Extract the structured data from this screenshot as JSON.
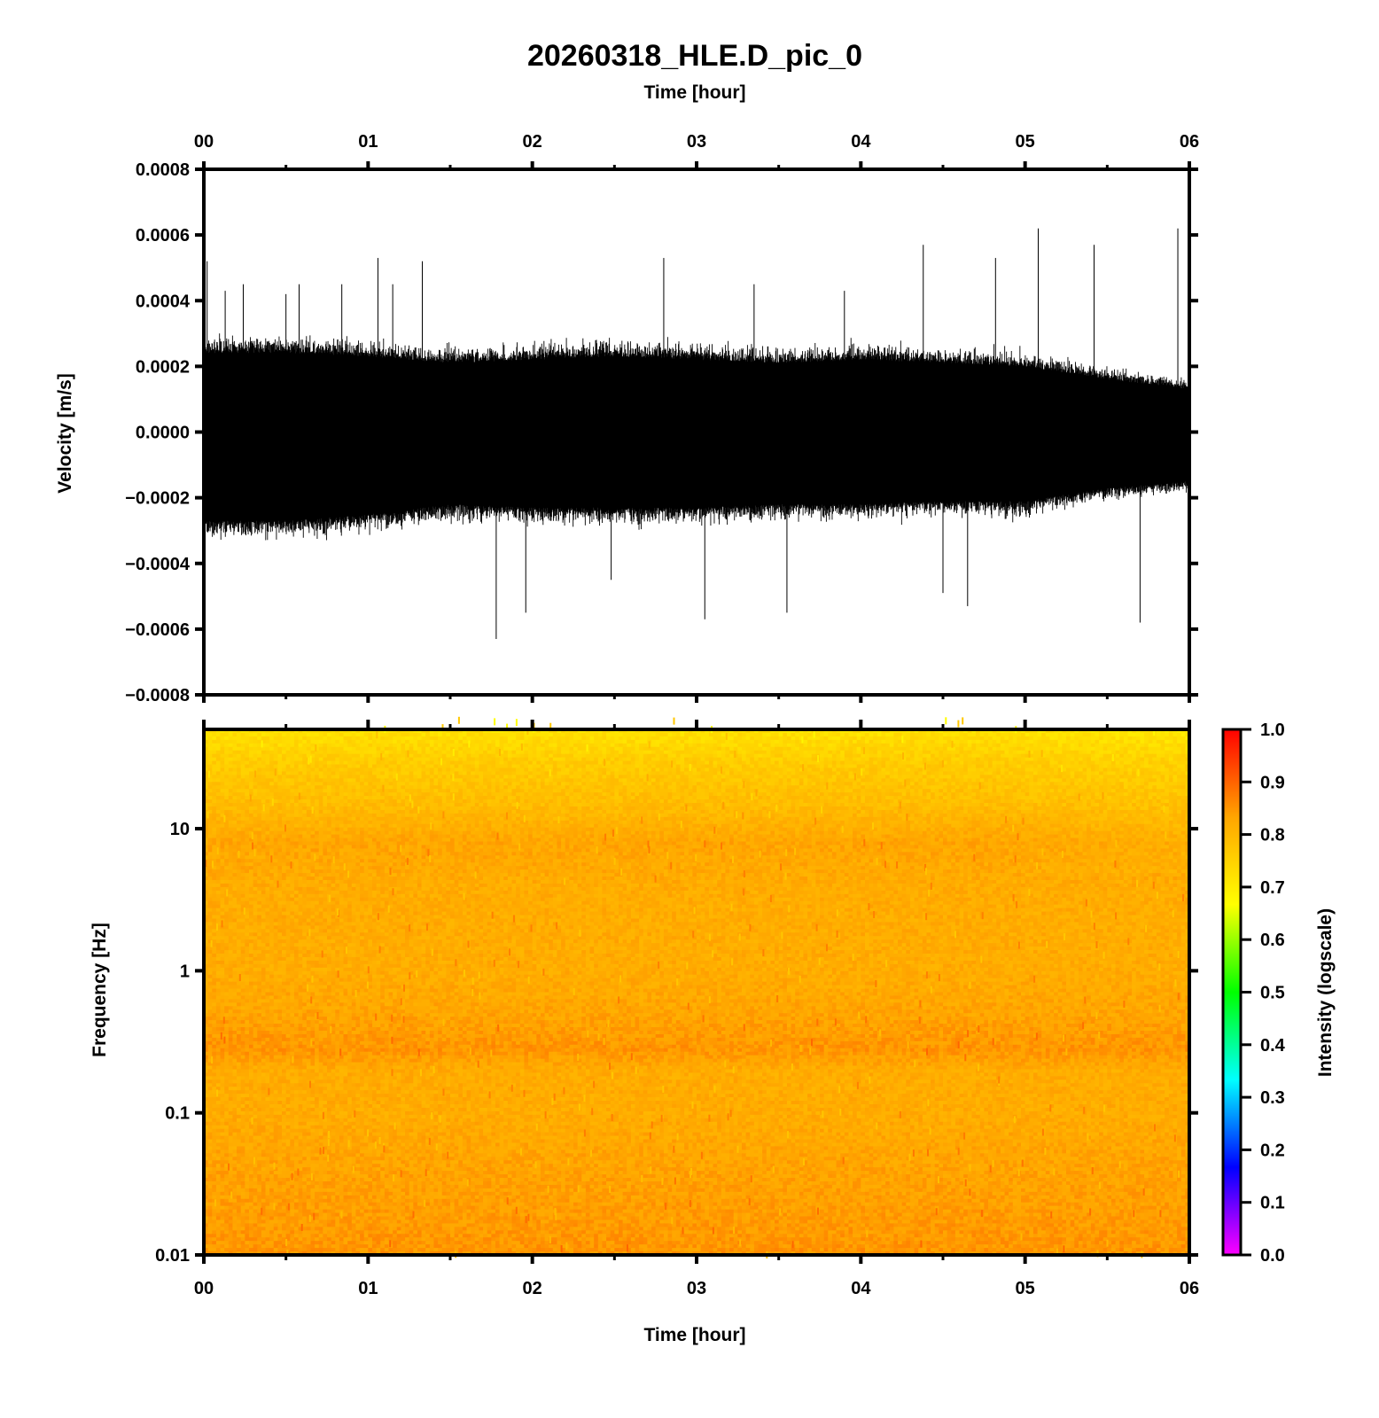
{
  "figure": {
    "title": "20260318_HLE.D_pic_0",
    "top_time_axis_label": "Time [hour]",
    "bottom_time_axis_label": "Time [hour]"
  },
  "chart_data": [
    {
      "type": "line",
      "panel": "waveform",
      "ylabel": "Velocity [m/s]",
      "xlabel": "Time [hour]",
      "xlim": [
        0,
        6
      ],
      "ylim": [
        -0.0008,
        0.0008
      ],
      "x_ticks": [
        "00",
        "01",
        "02",
        "03",
        "04",
        "05",
        "06"
      ],
      "y_ticks": [
        "0.0008",
        "0.0006",
        "0.0004",
        "0.0002",
        "0.0000",
        "−0.0002",
        "−0.0004",
        "−0.0006",
        "−0.0008"
      ],
      "y_tick_values": [
        0.0008,
        0.0006,
        0.0004,
        0.0002,
        0.0,
        -0.0002,
        -0.0004,
        -0.0006,
        -0.0008
      ],
      "grid": false,
      "series": [
        {
          "color": "#000000",
          "envelope_x": [
            0,
            0.5,
            1,
            1.5,
            2,
            2.5,
            3,
            3.5,
            4,
            4.5,
            5,
            5.5,
            6
          ],
          "envelope_upper": [
            0.00024,
            0.00024,
            0.00023,
            0.00021,
            0.00022,
            0.00023,
            0.00022,
            0.00021,
            0.00022,
            0.00021,
            0.0002,
            0.00016,
            0.00013
          ],
          "envelope_lower": [
            -0.00027,
            -0.00027,
            -0.00025,
            -0.00022,
            -0.00023,
            -0.00023,
            -0.00023,
            -0.00022,
            -0.00022,
            -0.00021,
            -0.00021,
            -0.00017,
            -0.00015
          ],
          "spike_times": [
            0.02,
            0.13,
            0.24,
            0.5,
            0.58,
            0.84,
            1.06,
            1.15,
            1.33,
            1.78,
            1.96,
            2.48,
            2.8,
            3.05,
            3.35,
            3.55,
            3.9,
            4.38,
            4.5,
            4.65,
            4.82,
            5.08,
            5.42,
            5.7,
            5.93
          ],
          "spike_values": [
            0.00052,
            0.00043,
            0.00045,
            0.00042,
            0.00045,
            0.00045,
            0.00053,
            0.00045,
            0.00052,
            -0.00063,
            -0.00055,
            -0.00045,
            0.00053,
            -0.00057,
            0.00045,
            -0.00055,
            0.00043,
            0.00057,
            -0.00049,
            -0.00053,
            0.00053,
            0.00062,
            0.00057,
            -0.00058,
            0.00062
          ]
        }
      ]
    },
    {
      "type": "heatmap",
      "panel": "spectrogram",
      "xlabel": "Time [hour]",
      "ylabel": "Frequency [Hz]",
      "xlim": [
        0,
        6
      ],
      "ylim": [
        0.01,
        50
      ],
      "y_scale": "log",
      "x_ticks": [
        "00",
        "01",
        "02",
        "03",
        "04",
        "05",
        "06"
      ],
      "y_ticks": [
        "10",
        "1",
        "0.1",
        "0.01"
      ],
      "y_tick_values": [
        10,
        1,
        0.1,
        0.01
      ],
      "frequency_bands_hz": [
        50,
        30,
        15,
        8,
        4,
        2,
        1,
        0.5,
        0.28,
        0.2,
        0.1,
        0.05,
        0.02,
        0.01
      ],
      "intensity_by_band": [
        0.72,
        0.76,
        0.79,
        0.83,
        0.82,
        0.82,
        0.82,
        0.83,
        0.85,
        0.82,
        0.82,
        0.83,
        0.84,
        0.85
      ],
      "colorbar": {
        "label": "Intensity (logscale)",
        "range": [
          0.0,
          1.0
        ],
        "ticks": [
          "1.0",
          "0.9",
          "0.8",
          "0.7",
          "0.6",
          "0.5",
          "0.4",
          "0.3",
          "0.2",
          "0.1",
          "0.0"
        ],
        "tick_values": [
          1.0,
          0.9,
          0.8,
          0.7,
          0.6,
          0.5,
          0.4,
          0.3,
          0.2,
          0.1,
          0.0
        ],
        "colors": [
          "#ff00ff",
          "#0000ff",
          "#00ffff",
          "#00ff00",
          "#ffff00",
          "#ffa500",
          "#ff0000"
        ]
      }
    }
  ]
}
